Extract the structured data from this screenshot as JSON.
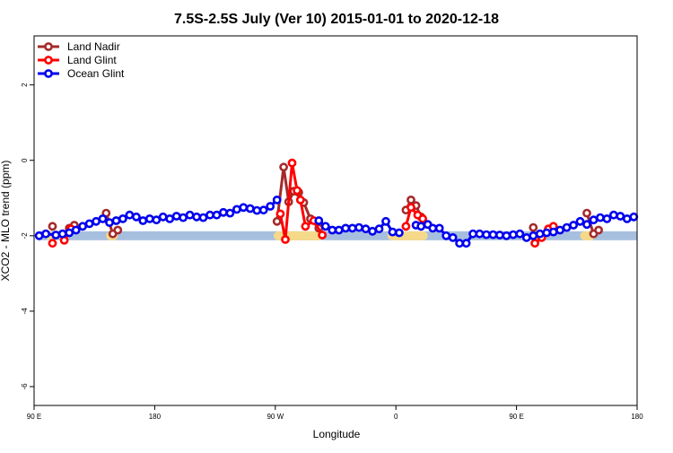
{
  "chart_data": {
    "type": "line",
    "title": "7.5S-2.5S July (Ver 10)   2015-01-01 to 2020-12-18",
    "xlabel": "Longitude",
    "ylabel": "XCO2 - MLO trend (ppm)",
    "xlim": [
      90,
      450
    ],
    "ylim": [
      -6.5,
      3.3
    ],
    "x_ticks": [
      {
        "value": 90,
        "label": "90 E"
      },
      {
        "value": 162,
        "label": "180"
      },
      {
        "value": 234,
        "label": "90 W"
      },
      {
        "value": 306,
        "label": "0"
      },
      {
        "value": 378,
        "label": "90 E"
      },
      {
        "value": 450,
        "label": "180"
      }
    ],
    "y_ticks": [
      {
        "value": 2,
        "label": "2"
      },
      {
        "value": 0,
        "label": "0"
      },
      {
        "value": -2,
        "label": "-2"
      },
      {
        "value": -4,
        "label": "-4"
      },
      {
        "value": -6,
        "label": "-6"
      }
    ],
    "grid": false,
    "legend_position": "top-left",
    "land_band": {
      "y": -2.0,
      "ocean_color": "#a7bfdf",
      "land_color": "#f5d98a",
      "land_segments": [
        [
          97,
          101
        ],
        [
          133,
          140
        ],
        [
          233,
          263
        ],
        [
          301,
          325
        ],
        [
          388,
          391
        ],
        [
          416,
          425
        ]
      ]
    },
    "series": [
      {
        "name": "Land Nadir",
        "color": "#a52a2a",
        "segments": [
          {
            "x": [
              101
            ],
            "y": [
              -1.75
            ]
          },
          {
            "x": [
              111,
              114
            ],
            "y": [
              -1.8,
              -1.72
            ]
          },
          {
            "x": [
              133,
              137,
              140
            ],
            "y": [
              -1.4,
              -1.95,
              -1.85
            ]
          },
          {
            "x": [
              235,
              239,
              242,
              245,
              248,
              251,
              255,
              260
            ],
            "y": [
              -1.62,
              -0.18,
              -1.1,
              -0.82,
              -0.85,
              -1.12,
              -1.55,
              -1.8
            ]
          },
          {
            "x": [
              312,
              315,
              318,
              321
            ],
            "y": [
              -1.32,
              -1.05,
              -1.2,
              -1.5
            ]
          },
          {
            "x": [
              388
            ],
            "y": [
              -1.78
            ]
          },
          {
            "x": [
              420,
              424,
              427
            ],
            "y": [
              -1.4,
              -1.95,
              -1.85
            ]
          }
        ]
      },
      {
        "name": "Land Glint",
        "color": "#ff0000",
        "segments": [
          {
            "x": [
              101
            ],
            "y": [
              -2.2
            ]
          },
          {
            "x": [
              108,
              112
            ],
            "y": [
              -2.12,
              -1.82
            ]
          },
          {
            "x": [
              237,
              240,
              244,
              247,
              249,
              252,
              257,
              262
            ],
            "y": [
              -1.42,
              -2.1,
              -0.07,
              -0.8,
              -1.05,
              -1.75,
              -1.6,
              -1.98
            ]
          },
          {
            "x": [
              312,
              315,
              319,
              322
            ],
            "y": [
              -1.75,
              -1.25,
              -1.45,
              -1.55
            ]
          },
          {
            "x": [
              389,
              393,
              397,
              400
            ],
            "y": [
              -2.2,
              -2.05,
              -1.82,
              -1.75
            ]
          }
        ]
      },
      {
        "name": "Ocean Glint",
        "color": "#0000ee",
        "segments": [
          {
            "x": [
              93,
              97,
              103,
              107,
              111,
              115,
              119,
              123,
              127,
              131,
              135,
              139,
              143,
              147,
              151,
              155,
              159,
              163,
              167,
              171,
              175,
              179,
              183,
              187,
              191,
              195,
              199,
              203,
              207,
              211,
              215,
              219,
              223,
              227,
              231,
              235
            ],
            "y": [
              -2.0,
              -1.95,
              -1.98,
              -1.95,
              -1.92,
              -1.85,
              -1.75,
              -1.68,
              -1.62,
              -1.55,
              -1.65,
              -1.6,
              -1.55,
              -1.45,
              -1.5,
              -1.6,
              -1.55,
              -1.58,
              -1.5,
              -1.55,
              -1.48,
              -1.52,
              -1.45,
              -1.5,
              -1.52,
              -1.45,
              -1.45,
              -1.38,
              -1.4,
              -1.3,
              -1.25,
              -1.28,
              -1.33,
              -1.32,
              -1.22,
              -1.05
            ]
          },
          {
            "x": [
              260,
              264,
              268,
              272,
              276,
              280,
              284,
              288,
              292,
              296,
              300,
              304,
              308
            ],
            "y": [
              -1.6,
              -1.75,
              -1.85,
              -1.85,
              -1.8,
              -1.8,
              -1.78,
              -1.82,
              -1.88,
              -1.82,
              -1.62,
              -1.9,
              -1.92
            ]
          },
          {
            "x": [
              318,
              321,
              325,
              328,
              332,
              336,
              340,
              344,
              348,
              352,
              356,
              360,
              364,
              368,
              372,
              376,
              380,
              384,
              388,
              392,
              396,
              400,
              404,
              408,
              412,
              416,
              420,
              424,
              428,
              432,
              436,
              440,
              444,
              448
            ],
            "y": [
              -1.72,
              -1.75,
              -1.7,
              -1.8,
              -1.8,
              -2.0,
              -2.05,
              -2.2,
              -2.2,
              -1.95,
              -1.95,
              -1.97,
              -1.97,
              -1.98,
              -2.0,
              -1.97,
              -1.95,
              -2.05,
              -2.0,
              -1.95,
              -1.92,
              -1.9,
              -1.85,
              -1.78,
              -1.72,
              -1.62,
              -1.7,
              -1.58,
              -1.52,
              -1.55,
              -1.45,
              -1.48,
              -1.55,
              -1.5
            ]
          }
        ]
      }
    ]
  }
}
